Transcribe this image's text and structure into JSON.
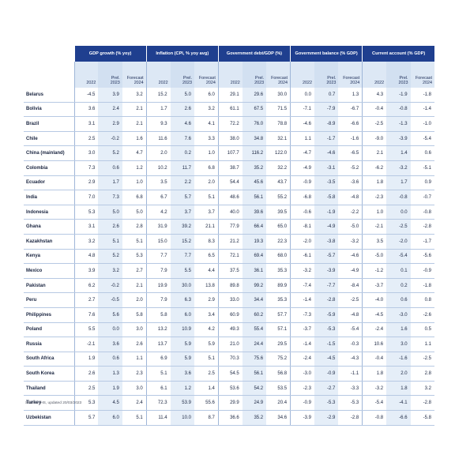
{
  "groups": [
    {
      "label": "GDP growth (% yoy)",
      "subs": [
        "2022",
        "Prel.\n2023",
        "Forecast\n2024"
      ]
    },
    {
      "label": "Inflation (CPI, % yoy avg)",
      "subs": [
        "2022",
        "Prel.\n2023",
        "Forecast\n2024"
      ]
    },
    {
      "label": "Government debt/GDP (%)",
      "subs": [
        "2022",
        "Prel.\n2023",
        "Forecast\n2024"
      ]
    },
    {
      "label": "Government balance (% GDP)",
      "subs": [
        "2022",
        "Prel.\n2023",
        "Forecast\n2024"
      ]
    },
    {
      "label": "Current account (% GDP)",
      "subs": [
        "2022",
        "Prel.\n2023",
        "Forecast\n2024"
      ]
    }
  ],
  "rows": [
    {
      "country": "Belarus",
      "values": [
        "-4.5",
        "3.9",
        "3.2",
        "15.2",
        "5.0",
        "6.0",
        "29.1",
        "29.6",
        "30.0",
        "0.0",
        "0.7",
        "1.3",
        "4.3",
        "-1.9",
        "-1.8"
      ]
    },
    {
      "country": "Bolivia",
      "values": [
        "3.6",
        "2.4",
        "2.1",
        "1.7",
        "2.6",
        "3.2",
        "61.1",
        "67.5",
        "71.5",
        "-7.1",
        "-7.9",
        "-6.7",
        "-0.4",
        "-0.8",
        "-1.4"
      ]
    },
    {
      "country": "Brazil",
      "values": [
        "3.1",
        "2.9",
        "2.1",
        "9.3",
        "4.6",
        "4.1",
        "72.2",
        "76.0",
        "78.8",
        "-4.6",
        "-8.9",
        "-6.6",
        "-2.5",
        "-1.3",
        "-1.0"
      ]
    },
    {
      "country": "Chile",
      "values": [
        "2.5",
        "-0.2",
        "1.6",
        "11.6",
        "7.6",
        "3.3",
        "38.0",
        "34.8",
        "32.1",
        "1.1",
        "-1.7",
        "-1.6",
        "-9.0",
        "-3.9",
        "-5.4"
      ]
    },
    {
      "country": "China (mainland)",
      "values": [
        "3.0",
        "5.2",
        "4.7",
        "2.0",
        "0.2",
        "1.0",
        "107.7",
        "116.2",
        "122.0",
        "-4.7",
        "-4.6",
        "-6.5",
        "2.1",
        "1.4",
        "0.6"
      ]
    },
    {
      "country": "Colombia",
      "values": [
        "7.3",
        "0.6",
        "1.2",
        "10.2",
        "11.7",
        "6.8",
        "38.7",
        "35.2",
        "32.2",
        "-4.9",
        "-3.1",
        "-5.2",
        "-6.2",
        "-3.2",
        "-5.1"
      ]
    },
    {
      "country": "Ecuador",
      "values": [
        "2.9",
        "1.7",
        "1.0",
        "3.5",
        "2.2",
        "2.0",
        "54.4",
        "45.6",
        "43.7",
        "-0.9",
        "-3.5",
        "-3.6",
        "1.8",
        "1.7",
        "0.9"
      ]
    },
    {
      "country": "India",
      "values": [
        "7.0",
        "7.3",
        "6.8",
        "6.7",
        "5.7",
        "5.1",
        "48.6",
        "56.1",
        "55.2",
        "-6.8",
        "-5.8",
        "-4.8",
        "-2.3",
        "-0.8",
        "-0.7"
      ]
    },
    {
      "country": "Indonesia",
      "values": [
        "5.3",
        "5.0",
        "5.0",
        "4.2",
        "3.7",
        "3.7",
        "40.0",
        "39.6",
        "39.5",
        "-0.6",
        "-1.9",
        "-2.2",
        "1.0",
        "0.0",
        "-0.8"
      ]
    },
    {
      "country": "Ghana",
      "values": [
        "3.1",
        "2.6",
        "2.8",
        "31.9",
        "39.2",
        "21.1",
        "77.9",
        "66.4",
        "65.0",
        "-8.1",
        "-4.9",
        "-5.0",
        "-2.1",
        "-2.5",
        "-2.8"
      ]
    },
    {
      "country": "Kazakhstan",
      "values": [
        "3.2",
        "5.1",
        "5.1",
        "15.0",
        "15.2",
        "8.3",
        "21.2",
        "19.3",
        "22.3",
        "-2.0",
        "-3.8",
        "-3.2",
        "3.5",
        "-2.0",
        "-1.7"
      ]
    },
    {
      "country": "Kenya",
      "values": [
        "4.8",
        "5.2",
        "5.3",
        "7.7",
        "7.7",
        "6.5",
        "72.1",
        "69.4",
        "68.0",
        "-6.1",
        "-5.7",
        "-4.6",
        "-5.0",
        "-5.4",
        "-5.6"
      ]
    },
    {
      "country": "Mexico",
      "values": [
        "3.9",
        "3.2",
        "2.7",
        "7.9",
        "5.5",
        "4.4",
        "37.5",
        "36.1",
        "35.3",
        "-3.2",
        "-3.9",
        "-4.9",
        "-1.2",
        "0.1",
        "-0.9"
      ]
    },
    {
      "country": "Pakistan",
      "values": [
        "6.2",
        "-0.2",
        "2.1",
        "19.9",
        "30.0",
        "13.8",
        "89.8",
        "99.2",
        "89.9",
        "-7.4",
        "-7.7",
        "-8.4",
        "-3.7",
        "0.2",
        "-1.8"
      ]
    },
    {
      "country": "Peru",
      "values": [
        "2.7",
        "-0.5",
        "2.0",
        "7.9",
        "6.3",
        "2.9",
        "33.0",
        "34.4",
        "35.3",
        "-1.4",
        "-2.8",
        "-2.5",
        "-4.0",
        "0.6",
        "0.8"
      ]
    },
    {
      "country": "Philippines",
      "values": [
        "7.6",
        "5.6",
        "5.8",
        "5.8",
        "6.0",
        "3.4",
        "60.9",
        "60.2",
        "57.7",
        "-7.3",
        "-5.9",
        "-4.8",
        "-4.5",
        "-3.0",
        "-2.6"
      ]
    },
    {
      "country": "Poland",
      "values": [
        "5.5",
        "0.0",
        "3.0",
        "13.2",
        "10.9",
        "4.2",
        "49.3",
        "55.4",
        "57.1",
        "-3.7",
        "-5.3",
        "-5.4",
        "-2.4",
        "1.6",
        "0.5"
      ]
    },
    {
      "country": "Russia",
      "values": [
        "-2.1",
        "3.6",
        "2.6",
        "13.7",
        "5.9",
        "5.9",
        "21.0",
        "24.4",
        "29.5",
        "-1.4",
        "-1.5",
        "-0.3",
        "10.6",
        "3.0",
        "1.1"
      ]
    },
    {
      "country": "South Africa",
      "values": [
        "1.9",
        "0.6",
        "1.1",
        "6.9",
        "5.9",
        "5.1",
        "70.3",
        "75.6",
        "75.2",
        "-2.4",
        "-4.5",
        "-4.3",
        "-0.4",
        "-1.6",
        "-2.5"
      ]
    },
    {
      "country": "South Korea",
      "values": [
        "2.6",
        "1.3",
        "2.3",
        "5.1",
        "3.6",
        "2.5",
        "54.5",
        "56.1",
        "56.8",
        "-3.0",
        "-0.9",
        "-1.1",
        "1.8",
        "2.0",
        "2.8"
      ]
    },
    {
      "country": "Thailand",
      "values": [
        "2.5",
        "1.9",
        "3.0",
        "6.1",
        "1.2",
        "1.4",
        "53.6",
        "54.2",
        "53.5",
        "-2.3",
        "-2.7",
        "-3.3",
        "-3.2",
        "1.8",
        "3.2"
      ]
    },
    {
      "country": "Turkey",
      "values": [
        "5.3",
        "4.5",
        "2.4",
        "72.3",
        "53.9",
        "55.6",
        "29.9",
        "24.9",
        "20.4",
        "-0.9",
        "-5.3",
        "-5.3",
        "-5.4",
        "-4.1",
        "-2.8"
      ]
    },
    {
      "country": "Uzbekistan",
      "values": [
        "5.7",
        "6.0",
        "5.1",
        "11.4",
        "10.0",
        "8.7",
        "36.6",
        "35.2",
        "34.6",
        "-3.9",
        "-2.9",
        "-2.8",
        "-0.8",
        "-6.6",
        "-5.8"
      ]
    }
  ],
  "source": "Source: IHS, updated 20/03/2023",
  "colors": {
    "header_bg": "#1f3f8f",
    "subheader_bg": "#dde8f5",
    "shade_col": "#e5eef8",
    "rule": "#b7c9e3"
  }
}
